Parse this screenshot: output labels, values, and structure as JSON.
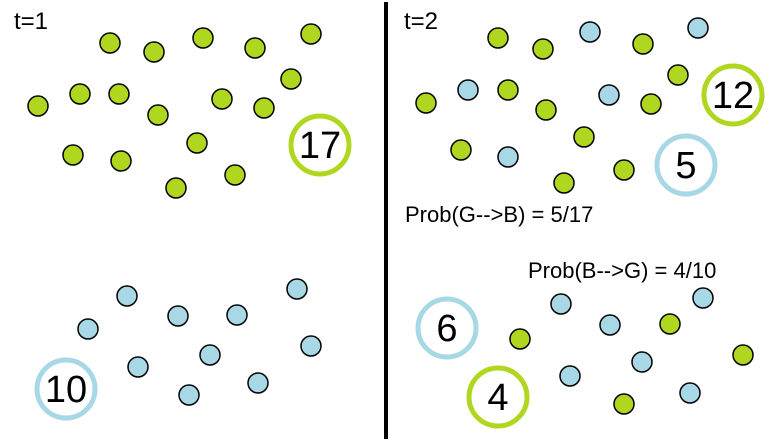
{
  "colors": {
    "green": "#b0d720",
    "blue": "#a8d8e6",
    "dot_stroke": "#000000",
    "divider": "#000000",
    "text": "#000000"
  },
  "panels": {
    "left": {
      "time_label": "t=1",
      "green_count": "17",
      "blue_count": "10"
    },
    "right": {
      "time_label": "t=2",
      "green_stay_count": "12",
      "green_to_blue_count": "5",
      "blue_stay_count": "6",
      "blue_to_green_count": "4"
    }
  },
  "probabilities": {
    "g_to_b": "Prob(G-->B) = 5/17",
    "b_to_g": "Prob(B-->G) = 4/10"
  }
}
